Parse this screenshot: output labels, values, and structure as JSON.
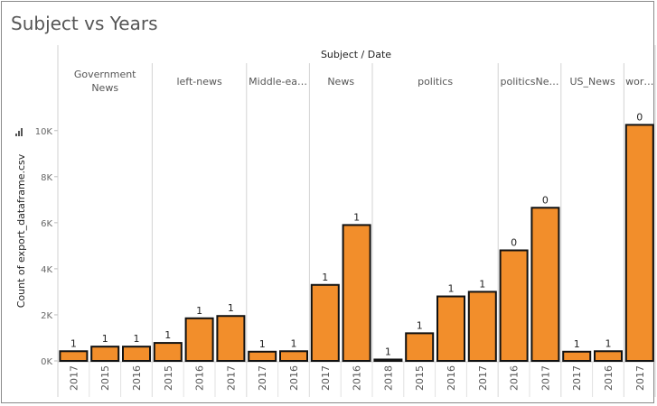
{
  "page_title": "Subject vs Years",
  "chart_data": {
    "type": "bar",
    "title": "Subject vs Years",
    "column_header": "Subject / Date",
    "ylabel": "Count of export_dataframe.csv",
    "ylim": [
      0,
      10500
    ],
    "y_ticks": [
      0,
      2000,
      4000,
      6000,
      8000,
      10000
    ],
    "y_tick_labels": [
      "0K",
      "2K",
      "4K",
      "6K",
      "8K",
      "10K"
    ],
    "gridlines": false,
    "bar_color": "#f28e2b",
    "bar_outline": "#111111",
    "groups": [
      {
        "name": "Government News",
        "bars": [
          {
            "date": "2017",
            "value": 420,
            "label": "1"
          },
          {
            "date": "2015",
            "value": 620,
            "label": "1"
          },
          {
            "date": "2016",
            "value": 620,
            "label": "1"
          }
        ]
      },
      {
        "name": "left-news",
        "bars": [
          {
            "date": "2015",
            "value": 780,
            "label": "1"
          },
          {
            "date": "2016",
            "value": 1850,
            "label": "1"
          },
          {
            "date": "2017",
            "value": 1950,
            "label": "1"
          }
        ]
      },
      {
        "name": "Middle-ea…",
        "bars": [
          {
            "date": "2017",
            "value": 400,
            "label": "1"
          },
          {
            "date": "2016",
            "value": 420,
            "label": "1"
          }
        ]
      },
      {
        "name": "News",
        "bars": [
          {
            "date": "2017",
            "value": 3300,
            "label": "1"
          },
          {
            "date": "2016",
            "value": 5900,
            "label": "1"
          }
        ]
      },
      {
        "name": "politics",
        "bars": [
          {
            "date": "2018",
            "value": 60,
            "label": "1"
          },
          {
            "date": "2015",
            "value": 1200,
            "label": "1"
          },
          {
            "date": "2016",
            "value": 2800,
            "label": "1"
          },
          {
            "date": "2017",
            "value": 3000,
            "label": "1"
          }
        ]
      },
      {
        "name": "politicsNe…",
        "bars": [
          {
            "date": "2016",
            "value": 4800,
            "label": "0"
          },
          {
            "date": "2017",
            "value": 6650,
            "label": "0"
          }
        ]
      },
      {
        "name": "US_News",
        "bars": [
          {
            "date": "2017",
            "value": 400,
            "label": "1"
          },
          {
            "date": "2016",
            "value": 420,
            "label": "1"
          }
        ]
      },
      {
        "name": "wor…",
        "bars": [
          {
            "date": "2017",
            "value": 10250,
            "label": "0"
          }
        ]
      }
    ]
  }
}
